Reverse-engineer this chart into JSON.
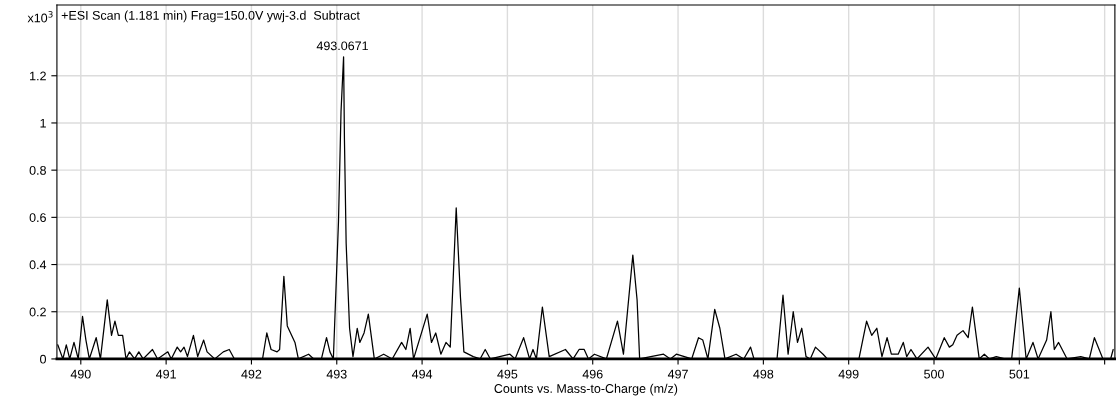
{
  "chart_data": {
    "type": "line",
    "title": "+ESI Scan (1.181 min) Frag=150.0V ywj-3.d  Subtract",
    "xlabel": "Counts vs. Mass-to-Charge (m/z)",
    "ylabel": "x10$^{3}$",
    "annotations": [
      {
        "text": "493.0671",
        "x": 493.0671,
        "y": 1.28
      }
    ],
    "x": [
      489.73,
      489.79,
      489.83,
      489.87,
      489.92,
      489.97,
      490.02,
      490.06,
      490.1,
      490.18,
      490.23,
      490.31,
      490.36,
      490.4,
      490.44,
      490.49,
      490.53,
      490.57,
      490.63,
      490.68,
      490.73,
      490.84,
      490.9,
      491.02,
      491.06,
      491.13,
      491.17,
      491.21,
      491.25,
      491.32,
      491.37,
      491.44,
      491.48,
      491.57,
      491.67,
      491.74,
      491.8,
      492.13,
      492.18,
      492.23,
      492.3,
      492.33,
      492.38,
      492.42,
      492.51,
      492.55,
      492.67,
      492.73,
      492.82,
      492.88,
      492.92,
      492.96,
      493.02,
      493.05,
      493.08,
      493.09,
      493.11,
      493.15,
      493.19,
      493.24,
      493.27,
      493.32,
      493.37,
      493.44,
      493.55,
      493.65,
      493.76,
      493.81,
      493.86,
      493.9,
      494.06,
      494.11,
      494.16,
      494.22,
      494.28,
      494.33,
      494.4,
      494.45,
      494.49,
      494.6,
      494.68,
      494.74,
      494.8,
      495.03,
      495.09,
      495.19,
      495.26,
      495.3,
      495.34,
      495.41,
      495.49,
      495.68,
      495.77,
      495.84,
      495.9,
      495.95,
      496.02,
      496.16,
      496.29,
      496.36,
      496.47,
      496.52,
      496.55,
      496.68,
      496.83,
      496.91,
      496.98,
      497.16,
      497.24,
      497.29,
      497.35,
      497.43,
      497.49,
      497.55,
      497.68,
      497.77,
      497.85,
      497.89,
      498.16,
      498.23,
      498.29,
      498.35,
      498.4,
      498.45,
      498.5,
      498.55,
      498.61,
      498.7,
      498.75,
      499.12,
      499.21,
      499.27,
      499.33,
      499.39,
      499.45,
      499.5,
      499.58,
      499.64,
      499.68,
      499.73,
      499.8,
      499.93,
      500.02,
      500.12,
      500.18,
      500.22,
      500.27,
      500.34,
      500.4,
      500.45,
      500.53,
      500.59,
      500.65,
      500.73,
      500.83,
      500.91,
      501.0,
      501.04,
      501.08,
      501.16,
      501.22,
      501.32,
      501.37,
      501.41,
      501.46,
      501.56,
      501.72,
      501.82,
      501.88,
      501.98,
      502.07,
      502.1
    ],
    "series": [
      {
        "color": "#000000",
        "values": [
          0.06,
          0,
          0.06,
          0,
          0.07,
          0,
          0.18,
          0.08,
          0,
          0.09,
          0,
          0.25,
          0.1,
          0.16,
          0.1,
          0.1,
          0,
          0.03,
          0,
          0.03,
          0,
          0.04,
          0,
          0.03,
          0,
          0.05,
          0.03,
          0.05,
          0.01,
          0.1,
          0.01,
          0.08,
          0.03,
          0,
          0.03,
          0.04,
          0,
          0,
          0.11,
          0.04,
          0.03,
          0.04,
          0.35,
          0.14,
          0.07,
          0,
          0.02,
          0,
          0,
          0.09,
          0.03,
          0,
          0.58,
          1.05,
          1.28,
          0.93,
          0.49,
          0.13,
          0.01,
          0.13,
          0.07,
          0.11,
          0.19,
          0,
          0.02,
          0,
          0.07,
          0.04,
          0.13,
          0,
          0.19,
          0.07,
          0.11,
          0.02,
          0.07,
          0.05,
          0.64,
          0.26,
          0.03,
          0.01,
          0,
          0.04,
          0,
          0.02,
          0,
          0.09,
          0,
          0.04,
          0,
          0.22,
          0.01,
          0.04,
          0,
          0.04,
          0.04,
          0,
          0.02,
          0,
          0.16,
          0.02,
          0.44,
          0.25,
          0,
          0.01,
          0.02,
          0,
          0.02,
          0,
          0.09,
          0.08,
          0,
          0.21,
          0.13,
          0,
          0.02,
          0,
          0.05,
          0,
          0,
          0.27,
          0.02,
          0.2,
          0.07,
          0.13,
          0.01,
          0,
          0.05,
          0.02,
          0,
          0,
          0.16,
          0.1,
          0.13,
          0.01,
          0.09,
          0.02,
          0.02,
          0.07,
          0.01,
          0.04,
          0,
          0.05,
          0,
          0.09,
          0.05,
          0.06,
          0.1,
          0.12,
          0.09,
          0.22,
          0,
          0.02,
          0,
          0.01,
          0,
          0,
          0.3,
          0.15,
          0,
          0.07,
          0,
          0.08,
          0.2,
          0.04,
          0.07,
          0,
          0.01,
          0,
          0.09,
          0,
          0,
          0.04
        ]
      }
    ],
    "xlim": [
      489.72,
      502.12
    ],
    "xticks": [
      490,
      491,
      492,
      493,
      494,
      495,
      496,
      497,
      498,
      499,
      500,
      501,
      {
        "value": 502,
        "label": null
      }
    ],
    "ylim": [
      0,
      1.5
    ],
    "yticks": [
      0,
      0.2,
      0.4,
      0.6,
      0.8,
      1,
      1.2
    ],
    "grid": true,
    "legend": false,
    "marker": "none",
    "line_style": "solid"
  }
}
